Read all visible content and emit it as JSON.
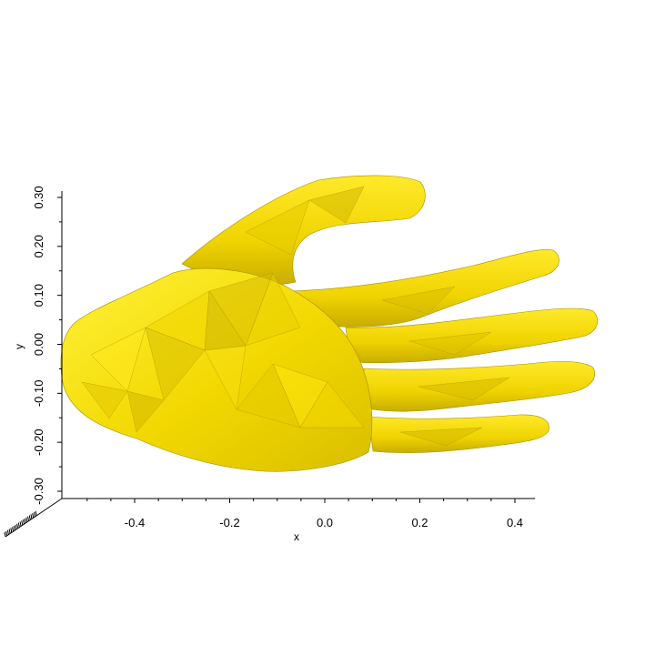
{
  "figure": {
    "subject": "hand mesh",
    "surface_color": "#f2d800",
    "shade_dark": "#c9b000",
    "shade_mid": "#e0c800",
    "shade_light": "#fff22e",
    "edge_color": "#8a7800"
  },
  "axes": {
    "x": {
      "label": "x",
      "ticks": [
        {
          "value": -0.4,
          "label": "-0.4"
        },
        {
          "value": -0.2,
          "label": "-0.2"
        },
        {
          "value": 0.0,
          "label": "0.0"
        },
        {
          "value": 0.2,
          "label": "0.2"
        },
        {
          "value": 0.4,
          "label": "0.4"
        }
      ]
    },
    "y": {
      "label": "y",
      "ticks": [
        {
          "value": 0.3,
          "label": "0.30"
        },
        {
          "value": 0.2,
          "label": "0.20"
        },
        {
          "value": 0.1,
          "label": "0.10"
        },
        {
          "value": 0.0,
          "label": "0.00"
        },
        {
          "value": -0.1,
          "label": "-0.10"
        },
        {
          "value": -0.2,
          "label": "-0.20"
        },
        {
          "value": -0.3,
          "label": "-0.30"
        }
      ]
    }
  }
}
